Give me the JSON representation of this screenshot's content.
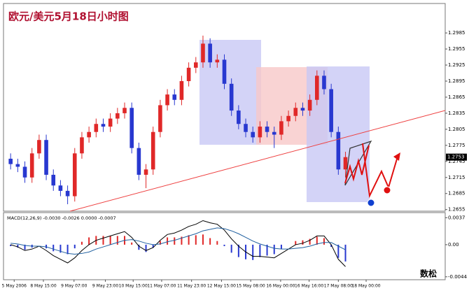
{
  "chart_data": [
    {
      "type": "candlestick",
      "title": "欧元/美元5月18日小时图",
      "x": [
        0,
        1,
        2,
        3,
        4,
        5,
        6,
        7,
        8,
        9,
        10,
        11,
        12,
        13,
        14,
        15,
        16,
        17,
        18,
        19,
        20,
        21,
        22,
        23,
        24,
        25,
        26,
        27,
        28,
        29,
        30,
        31,
        32,
        33,
        34,
        35,
        36,
        37,
        38,
        39,
        40,
        41,
        42,
        43,
        44,
        45,
        46,
        47
      ],
      "open": [
        1.275,
        1.274,
        1.2735,
        1.2715,
        1.276,
        1.2785,
        1.272,
        1.27,
        1.269,
        1.268,
        1.276,
        1.279,
        1.28,
        1.2815,
        1.281,
        1.2825,
        1.2835,
        1.2845,
        1.277,
        1.272,
        1.273,
        1.28,
        1.285,
        1.287,
        1.286,
        1.2895,
        1.292,
        1.293,
        1.2965,
        1.293,
        1.2935,
        1.289,
        1.284,
        1.2815,
        1.28,
        1.279,
        1.281,
        1.28,
        1.2795,
        1.282,
        1.283,
        1.2845,
        1.284,
        1.286,
        1.2905,
        1.288,
        1.28,
        1.273
      ],
      "high": [
        1.276,
        1.275,
        1.2745,
        1.277,
        1.2795,
        1.2795,
        1.273,
        1.271,
        1.27,
        1.277,
        1.28,
        1.281,
        1.2825,
        1.2825,
        1.2835,
        1.2845,
        1.2855,
        1.2855,
        1.278,
        1.274,
        1.281,
        1.286,
        1.288,
        1.288,
        1.2905,
        1.293,
        1.294,
        1.298,
        1.2975,
        1.2945,
        1.2945,
        1.29,
        1.285,
        1.2825,
        1.281,
        1.282,
        1.282,
        1.281,
        1.283,
        1.284,
        1.2855,
        1.2855,
        1.287,
        1.2915,
        1.2915,
        1.289,
        1.281,
        1.2763
      ],
      "low": [
        1.273,
        1.2725,
        1.2705,
        1.2705,
        1.275,
        1.271,
        1.269,
        1.268,
        1.2665,
        1.267,
        1.275,
        1.278,
        1.279,
        1.28,
        1.28,
        1.2815,
        1.2825,
        1.276,
        1.271,
        1.2695,
        1.272,
        1.279,
        1.284,
        1.285,
        1.285,
        1.2885,
        1.291,
        1.292,
        1.292,
        1.292,
        1.288,
        1.283,
        1.2805,
        1.279,
        1.278,
        1.278,
        1.279,
        1.277,
        1.2785,
        1.281,
        1.282,
        1.283,
        1.283,
        1.285,
        1.287,
        1.279,
        1.272,
        1.2715
      ],
      "close": [
        1.274,
        1.2735,
        1.2715,
        1.276,
        1.2785,
        1.272,
        1.27,
        1.269,
        1.268,
        1.276,
        1.279,
        1.28,
        1.2815,
        1.281,
        1.2825,
        1.2835,
        1.2845,
        1.277,
        1.272,
        1.273,
        1.28,
        1.285,
        1.287,
        1.286,
        1.2895,
        1.292,
        1.293,
        1.2965,
        1.293,
        1.2935,
        1.289,
        1.284,
        1.2815,
        1.28,
        1.279,
        1.281,
        1.28,
        1.2795,
        1.282,
        1.283,
        1.2845,
        1.284,
        1.286,
        1.2905,
        1.288,
        1.28,
        1.273,
        1.2753
      ],
      "up_color": "#e02828",
      "down_color": "#2838d0",
      "xlim": [
        -1,
        61
      ],
      "ylim": [
        1.2652,
        1.304
      ],
      "yticks": [
        1.2985,
        1.2955,
        1.2925,
        1.2895,
        1.2865,
        1.2835,
        1.2805,
        1.2775,
        1.2745,
        1.2715,
        1.2685,
        1.2655
      ],
      "last_price": 1.2753,
      "watermark": "数松"
    },
    {
      "type": "macd",
      "label": "MACD(12,26,9) -0.0030 -0.0026 0.0000 -0.0007",
      "x": [
        0,
        1,
        2,
        3,
        4,
        5,
        6,
        7,
        8,
        9,
        10,
        11,
        12,
        13,
        14,
        15,
        16,
        17,
        18,
        19,
        20,
        21,
        22,
        23,
        24,
        25,
        26,
        27,
        28,
        29,
        30,
        31,
        32,
        33,
        34,
        35,
        36,
        37,
        38,
        39,
        40,
        41,
        42,
        43,
        44,
        45,
        46,
        47
      ],
      "histogram": [
        -0.0002,
        -0.0004,
        -0.0007,
        -0.0004,
        0.0,
        -0.0005,
        -0.0009,
        -0.0011,
        -0.0013,
        -0.0005,
        0.0004,
        0.001,
        0.0012,
        0.0012,
        0.0012,
        0.0012,
        0.0012,
        0.0003,
        -0.0007,
        -0.001,
        -0.0004,
        0.0005,
        0.001,
        0.001,
        0.0011,
        0.0013,
        0.0013,
        0.0014,
        0.0009,
        0.0005,
        -0.0002,
        -0.0011,
        -0.0017,
        -0.002,
        -0.0021,
        -0.0017,
        -0.0015,
        -0.0013,
        -0.0006,
        0.0,
        0.0005,
        0.0006,
        0.0008,
        0.0011,
        0.0009,
        -0.0003,
        -0.0018,
        -0.0023
      ],
      "series": [
        {
          "name": "MACD",
          "color": "#000000",
          "values": [
            0.0,
            -0.0003,
            -0.0008,
            -0.0006,
            -0.0002,
            -0.0008,
            -0.0015,
            -0.002,
            -0.0025,
            -0.0018,
            -0.0008,
            0.0,
            0.0006,
            0.0009,
            0.0012,
            0.0015,
            0.0018,
            0.001,
            -0.0002,
            -0.0008,
            -0.0004,
            0.0006,
            0.0014,
            0.0016,
            0.002,
            0.0025,
            0.0028,
            0.0033,
            0.003,
            0.0028,
            0.002,
            0.0008,
            -0.0002,
            -0.001,
            -0.0016,
            -0.0016,
            -0.0017,
            -0.0018,
            -0.0012,
            -0.0006,
            0.0,
            0.0002,
            0.0006,
            0.0012,
            0.0012,
            0.0,
            -0.002,
            -0.003
          ]
        },
        {
          "name": "Signal",
          "color": "#2060a0",
          "values": [
            0.0002,
            0.0001,
            -0.0001,
            -0.0002,
            -0.0002,
            -0.0003,
            -0.0006,
            -0.0009,
            -0.0012,
            -0.0013,
            -0.0012,
            -0.001,
            -0.0006,
            -0.0003,
            0.0,
            0.0003,
            0.0006,
            0.0007,
            0.0005,
            0.0002,
            0.0,
            0.0001,
            0.0004,
            0.0006,
            0.0009,
            0.0012,
            0.0015,
            0.0019,
            0.0021,
            0.0023,
            0.0022,
            0.0019,
            0.0015,
            0.001,
            0.0005,
            0.0001,
            -0.0002,
            -0.0005,
            -0.0006,
            -0.0006,
            -0.0005,
            -0.0004,
            -0.0002,
            0.0001,
            0.0003,
            0.0003,
            -0.0002,
            -0.0007
          ]
        }
      ],
      "pos_color": "#e02828",
      "neg_color": "#2838d0",
      "xlim": [
        -1,
        61
      ],
      "ylim": [
        -0.0048,
        0.0044
      ],
      "yticks": [
        0.0037,
        {
          "value": 0,
          "label": "0.00"
        },
        -0.0044
      ],
      "xticks": [
        {
          "value": 0.5,
          "label": "5 May 2006"
        },
        {
          "value": 4.6,
          "label": "8 May 15:00"
        },
        {
          "value": 8.9,
          "label": "9 May 07:00"
        },
        {
          "value": 13.3,
          "label": "9 May 23:00"
        },
        {
          "value": 17.2,
          "label": "10 May 15:00"
        },
        {
          "value": 21.2,
          "label": "11 May 07:00"
        },
        {
          "value": 25.4,
          "label": "11 May 23:00"
        },
        {
          "value": 29.6,
          "label": "12 May 15:00"
        },
        {
          "value": 33.7,
          "label": "15 May 08:00"
        },
        {
          "value": 37.9,
          "label": "16 May 00:00"
        },
        {
          "value": 41.9,
          "label": "16 May 16:00"
        },
        {
          "value": 46,
          "label": "17 May 08:00"
        },
        {
          "value": 49.9,
          "label": "18 May 00:00"
        }
      ]
    }
  ]
}
